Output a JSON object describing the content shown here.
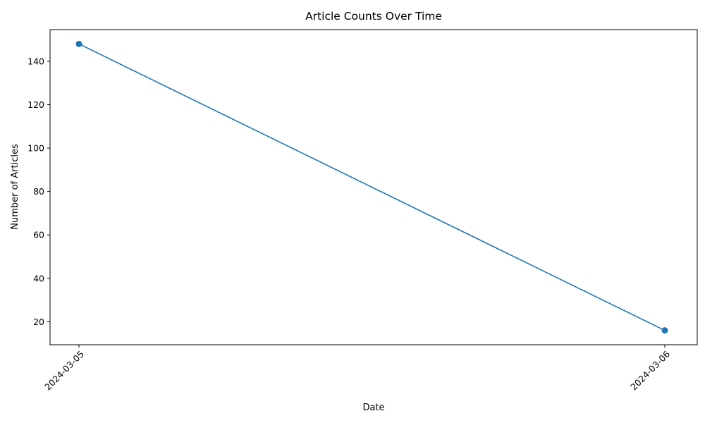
{
  "chart_data": {
    "type": "line",
    "title": "Article Counts Over Time",
    "xlabel": "Date",
    "ylabel": "Number of Articles",
    "categories": [
      "2024-03-05",
      "2024-03-06"
    ],
    "series": [
      {
        "values": [
          148,
          16
        ],
        "color": "#1f77b4",
        "marker": "circle"
      }
    ],
    "ylim": [
      9.4,
      154.6
    ],
    "yticks": [
      20,
      40,
      60,
      80,
      100,
      120,
      140
    ],
    "grid": false,
    "legend": "none"
  }
}
